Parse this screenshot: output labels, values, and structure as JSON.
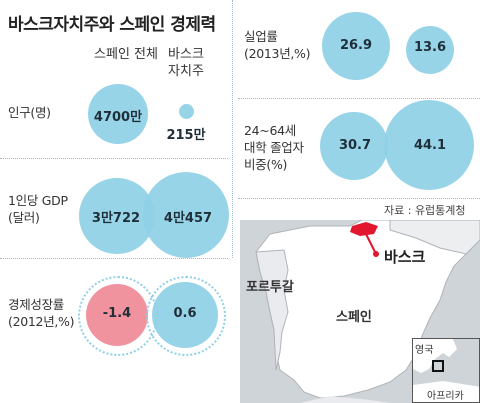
{
  "title": "바스크자치주와 스페인 경제력",
  "columns": {
    "spain": "스페인 전체",
    "basque": "바스크\n자치주"
  },
  "rows": [
    {
      "label": "인구(명)",
      "spain": "4700만",
      "basque": "215만"
    },
    {
      "label": "1인당 GDP\n(달러)",
      "spain": "3만722",
      "basque": "4만457"
    },
    {
      "label": "경제성장률\n(2012년,%)",
      "spain": "-1.4",
      "basque": "0.6"
    }
  ],
  "right_rows": [
    {
      "label": "실업률\n(2013년,%)",
      "spain": "26.9",
      "basque": "13.6"
    },
    {
      "label": "24~64세\n대학 졸업자\n비중(%)",
      "spain": "30.7",
      "basque": "44.1"
    }
  ],
  "source": "자료 : 유럽통계청",
  "map": {
    "basque": "바스크",
    "portugal": "포르투갈",
    "spain": "스페인",
    "uk": "영국",
    "africa": "아프리카"
  },
  "colors": {
    "circle": "#8fd0e6",
    "negative": "#f08a97",
    "highlight": "#e3162f"
  }
}
